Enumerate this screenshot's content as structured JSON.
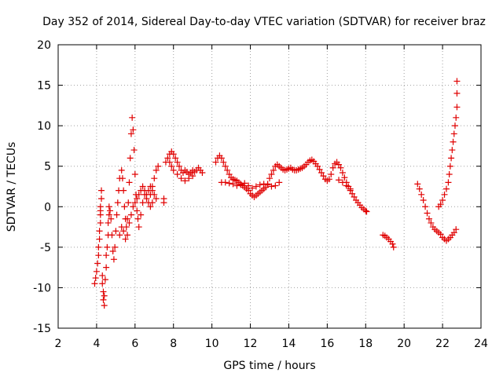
{
  "chart_data": {
    "type": "scatter",
    "title": "Day 352 of 2014, Sidereal Day-to-day VTEC variation (SDTVAR) for receiver braz",
    "xlabel": "GPS time / hours",
    "ylabel": "SDTVAR / TECUs",
    "xlim": [
      2,
      24
    ],
    "ylim": [
      -15,
      20
    ],
    "xticks": [
      2,
      4,
      6,
      8,
      10,
      12,
      14,
      16,
      18,
      20,
      22,
      24
    ],
    "yticks": [
      -15,
      -10,
      -5,
      0,
      5,
      10,
      15,
      20
    ],
    "grid": true,
    "marker": "+",
    "color": "#e00000",
    "series": [
      {
        "name": "SDTVAR",
        "points": [
          [
            3.9,
            -9.5
          ],
          [
            3.95,
            -8.8
          ],
          [
            4.0,
            -8.0
          ],
          [
            4.05,
            -7.0
          ],
          [
            4.1,
            -6.0
          ],
          [
            4.1,
            -5.0
          ],
          [
            4.15,
            -4.0
          ],
          [
            4.15,
            -3.0
          ],
          [
            4.2,
            -2.0
          ],
          [
            4.2,
            -1.0
          ],
          [
            4.2,
            0.0
          ],
          [
            4.25,
            1.0
          ],
          [
            4.25,
            2.0
          ],
          [
            4.2,
            -0.5
          ],
          [
            4.3,
            -8.5
          ],
          [
            4.3,
            -9.5
          ],
          [
            4.35,
            -10.5
          ],
          [
            4.35,
            -11.5
          ],
          [
            4.4,
            -12.2
          ],
          [
            4.4,
            -11.0
          ],
          [
            4.45,
            -9.0
          ],
          [
            4.5,
            -7.5
          ],
          [
            4.5,
            -6.0
          ],
          [
            4.55,
            -5.0
          ],
          [
            4.6,
            -3.5
          ],
          [
            4.6,
            -2.0
          ],
          [
            4.65,
            -1.0
          ],
          [
            4.65,
            0.0
          ],
          [
            4.7,
            -0.5
          ],
          [
            4.75,
            -1.5
          ],
          [
            4.8,
            -3.5
          ],
          [
            4.85,
            -5.5
          ],
          [
            4.9,
            -6.5
          ],
          [
            4.95,
            -5.0
          ],
          [
            5.0,
            -3.0
          ],
          [
            5.05,
            -1.0
          ],
          [
            5.1,
            0.5
          ],
          [
            5.15,
            2.0
          ],
          [
            5.2,
            3.5
          ],
          [
            5.3,
            4.5
          ],
          [
            5.35,
            3.5
          ],
          [
            5.4,
            2.0
          ],
          [
            5.45,
            0.0
          ],
          [
            5.5,
            -1.5
          ],
          [
            5.55,
            -2.5
          ],
          [
            5.6,
            -1.5
          ],
          [
            5.65,
            0.5
          ],
          [
            5.7,
            3.0
          ],
          [
            5.75,
            6.0
          ],
          [
            5.8,
            9.0
          ],
          [
            5.85,
            11.0
          ],
          [
            5.9,
            9.5
          ],
          [
            5.95,
            7.0
          ],
          [
            6.0,
            4.0
          ],
          [
            6.05,
            1.5
          ],
          [
            6.1,
            -0.5
          ],
          [
            6.15,
            -1.5
          ],
          [
            6.2,
            -2.5
          ],
          [
            6.3,
            -1.0
          ],
          [
            6.4,
            0.5
          ],
          [
            6.5,
            1.5
          ],
          [
            6.6,
            1.0
          ],
          [
            6.7,
            0.5
          ],
          [
            6.8,
            1.5
          ],
          [
            6.9,
            2.5
          ],
          [
            7.0,
            3.5
          ],
          [
            7.1,
            4.5
          ],
          [
            7.2,
            5.0
          ],
          [
            5.2,
            -3.5
          ],
          [
            5.3,
            -2.5
          ],
          [
            5.4,
            -3.0
          ],
          [
            5.5,
            -4.0
          ],
          [
            5.6,
            -3.5
          ],
          [
            5.7,
            -2.0
          ],
          [
            5.8,
            -1.0
          ],
          [
            5.9,
            0.0
          ],
          [
            6.0,
            0.5
          ],
          [
            6.1,
            1.0
          ],
          [
            6.2,
            1.5
          ],
          [
            6.3,
            2.0
          ],
          [
            6.4,
            2.5
          ],
          [
            6.5,
            2.0
          ],
          [
            6.6,
            1.5
          ],
          [
            6.7,
            2.0
          ],
          [
            6.8,
            2.5
          ],
          [
            6.9,
            2.0
          ],
          [
            7.0,
            1.5
          ],
          [
            7.1,
            1.0
          ],
          [
            6.8,
            0.0
          ],
          [
            6.9,
            0.5
          ],
          [
            7.5,
            0.5
          ],
          [
            7.5,
            1.0
          ],
          [
            7.6,
            5.5
          ],
          [
            7.7,
            6.0
          ],
          [
            7.8,
            6.5
          ],
          [
            7.9,
            6.8
          ],
          [
            8.0,
            6.5
          ],
          [
            8.1,
            6.0
          ],
          [
            8.2,
            5.5
          ],
          [
            8.3,
            5.0
          ],
          [
            8.4,
            4.5
          ],
          [
            8.5,
            4.2
          ],
          [
            8.6,
            4.5
          ],
          [
            8.7,
            4.3
          ],
          [
            8.8,
            4.0
          ],
          [
            8.9,
            4.2
          ],
          [
            9.0,
            4.5
          ],
          [
            9.1,
            4.3
          ],
          [
            9.2,
            4.5
          ],
          [
            9.3,
            4.8
          ],
          [
            9.4,
            4.5
          ],
          [
            9.5,
            4.2
          ],
          [
            7.8,
            5.5
          ],
          [
            7.9,
            5.0
          ],
          [
            8.0,
            4.5
          ],
          [
            8.2,
            4.0
          ],
          [
            8.4,
            3.5
          ],
          [
            8.6,
            3.2
          ],
          [
            8.8,
            3.5
          ],
          [
            9.0,
            3.8
          ],
          [
            10.2,
            5.5
          ],
          [
            10.3,
            6.0
          ],
          [
            10.4,
            6.3
          ],
          [
            10.5,
            6.0
          ],
          [
            10.6,
            5.5
          ],
          [
            10.7,
            5.0
          ],
          [
            10.8,
            4.5
          ],
          [
            10.9,
            4.0
          ],
          [
            11.0,
            3.6
          ],
          [
            11.1,
            3.4
          ],
          [
            11.2,
            3.3
          ],
          [
            11.3,
            3.2
          ],
          [
            11.4,
            3.0
          ],
          [
            11.5,
            2.8
          ],
          [
            11.6,
            2.6
          ],
          [
            11.7,
            2.4
          ],
          [
            11.8,
            2.2
          ],
          [
            11.9,
            2.0
          ],
          [
            12.0,
            1.6
          ],
          [
            12.1,
            1.4
          ],
          [
            12.2,
            1.2
          ],
          [
            12.3,
            1.4
          ],
          [
            12.4,
            1.6
          ],
          [
            12.5,
            1.8
          ],
          [
            12.6,
            2.0
          ],
          [
            12.7,
            2.2
          ],
          [
            12.8,
            2.4
          ],
          [
            12.9,
            2.8
          ],
          [
            13.0,
            3.5
          ],
          [
            13.1,
            4.0
          ],
          [
            13.2,
            4.5
          ],
          [
            13.3,
            5.0
          ],
          [
            13.4,
            5.2
          ],
          [
            13.5,
            5.0
          ],
          [
            13.6,
            4.8
          ],
          [
            13.7,
            4.6
          ],
          [
            13.8,
            4.5
          ],
          [
            13.9,
            4.6
          ],
          [
            14.0,
            4.7
          ],
          [
            14.1,
            4.8
          ],
          [
            14.2,
            4.6
          ],
          [
            14.3,
            4.5
          ],
          [
            14.4,
            4.5
          ],
          [
            14.5,
            4.6
          ],
          [
            14.6,
            4.7
          ],
          [
            14.7,
            4.8
          ],
          [
            14.8,
            5.0
          ],
          [
            14.9,
            5.2
          ],
          [
            15.0,
            5.5
          ],
          [
            15.1,
            5.7
          ],
          [
            15.2,
            5.8
          ],
          [
            15.3,
            5.6
          ],
          [
            15.4,
            5.3
          ],
          [
            15.5,
            5.0
          ],
          [
            15.6,
            4.6
          ],
          [
            15.7,
            4.2
          ],
          [
            15.8,
            3.8
          ],
          [
            15.9,
            3.4
          ],
          [
            16.0,
            3.2
          ],
          [
            16.1,
            3.4
          ],
          [
            16.2,
            4.0
          ],
          [
            16.3,
            4.8
          ],
          [
            16.4,
            5.3
          ],
          [
            16.5,
            5.5
          ],
          [
            16.6,
            5.2
          ],
          [
            16.7,
            4.8
          ],
          [
            16.8,
            4.2
          ],
          [
            16.9,
            3.6
          ],
          [
            17.0,
            3.0
          ],
          [
            17.1,
            2.5
          ],
          [
            17.2,
            2.0
          ],
          [
            17.3,
            1.6
          ],
          [
            17.4,
            1.2
          ],
          [
            17.5,
            0.8
          ],
          [
            17.6,
            0.5
          ],
          [
            17.7,
            0.2
          ],
          [
            17.8,
            -0.1
          ],
          [
            17.9,
            -0.3
          ],
          [
            18.0,
            -0.5
          ],
          [
            18.05,
            -0.6
          ],
          [
            10.5,
            3.0
          ],
          [
            10.7,
            3.0
          ],
          [
            10.9,
            2.9
          ],
          [
            11.1,
            2.8
          ],
          [
            11.3,
            2.6
          ],
          [
            11.5,
            2.7
          ],
          [
            11.7,
            2.9
          ],
          [
            11.9,
            2.6
          ],
          [
            12.1,
            2.3
          ],
          [
            12.3,
            2.5
          ],
          [
            12.5,
            2.7
          ],
          [
            12.7,
            2.8
          ],
          [
            12.9,
            2.7
          ],
          [
            13.1,
            2.5
          ],
          [
            13.3,
            2.6
          ],
          [
            13.5,
            3.0
          ],
          [
            16.6,
            3.3
          ],
          [
            16.8,
            3.0
          ],
          [
            17.0,
            2.6
          ],
          [
            17.2,
            2.2
          ],
          [
            18.9,
            -3.5
          ],
          [
            19.0,
            -3.6
          ],
          [
            19.1,
            -3.8
          ],
          [
            19.2,
            -4.0
          ],
          [
            19.3,
            -4.3
          ],
          [
            19.4,
            -4.6
          ],
          [
            19.45,
            -5.0
          ],
          [
            20.7,
            2.8
          ],
          [
            20.8,
            2.2
          ],
          [
            20.9,
            1.5
          ],
          [
            21.0,
            0.8
          ],
          [
            21.1,
            0.0
          ],
          [
            21.2,
            -0.8
          ],
          [
            21.3,
            -1.5
          ],
          [
            21.4,
            -2.0
          ],
          [
            21.5,
            -2.5
          ],
          [
            21.6,
            -2.8
          ],
          [
            21.7,
            -3.0
          ],
          [
            21.8,
            -3.2
          ],
          [
            21.9,
            -3.4
          ],
          [
            22.0,
            -3.8
          ],
          [
            22.1,
            -4.0
          ],
          [
            22.2,
            -4.2
          ],
          [
            22.3,
            -4.0
          ],
          [
            22.4,
            -3.8
          ],
          [
            22.5,
            -3.5
          ],
          [
            22.6,
            -3.2
          ],
          [
            22.7,
            -2.8
          ],
          [
            21.8,
            0.0
          ],
          [
            21.9,
            0.3
          ],
          [
            22.0,
            0.8
          ],
          [
            22.1,
            1.5
          ],
          [
            22.2,
            2.2
          ],
          [
            22.3,
            3.0
          ],
          [
            22.35,
            4.0
          ],
          [
            22.4,
            5.0
          ],
          [
            22.45,
            6.0
          ],
          [
            22.5,
            7.0
          ],
          [
            22.55,
            8.0
          ],
          [
            22.6,
            9.0
          ],
          [
            22.65,
            10.0
          ],
          [
            22.7,
            11.0
          ],
          [
            22.75,
            12.3
          ],
          [
            22.75,
            14.0
          ],
          [
            22.75,
            15.5
          ]
        ]
      }
    ]
  }
}
